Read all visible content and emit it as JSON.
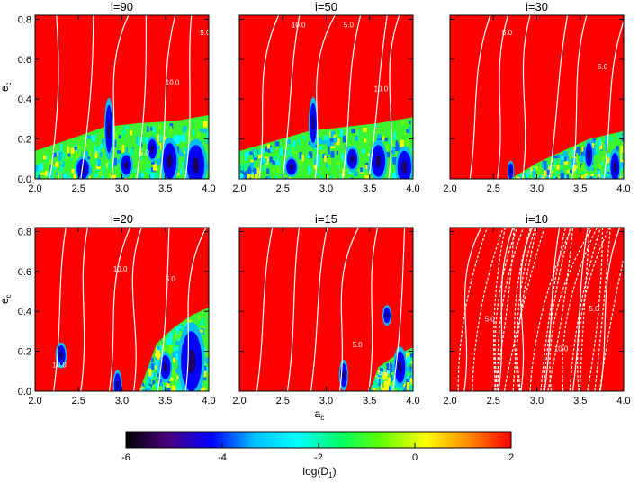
{
  "chart_data": [
    {
      "type": "heatmap",
      "title": "i=90",
      "xlim": [
        2.0,
        4.0
      ],
      "ylim": [
        0.0,
        0.82
      ],
      "xticks": [
        "2.0",
        "2.5",
        "3.0",
        "3.5",
        "4.0"
      ],
      "yticks": [
        "0.0",
        "0.2",
        "0.4",
        "0.6",
        "0.8"
      ],
      "ylabel_main": "e",
      "ylabel_sub": "c",
      "background_value": 2,
      "chaotic_region": [
        [
          2.0,
          0.14
        ],
        [
          2.4,
          0.2
        ],
        [
          2.8,
          0.26
        ],
        [
          3.2,
          0.28
        ],
        [
          3.6,
          0.29
        ],
        [
          4.0,
          0.32
        ]
      ],
      "stable_islands": [
        [
          2.55,
          0.05,
          0.07,
          0.05
        ],
        [
          2.85,
          0.25,
          0.04,
          0.12
        ],
        [
          3.05,
          0.07,
          0.06,
          0.05
        ],
        [
          3.55,
          0.09,
          0.08,
          0.09
        ],
        [
          3.85,
          0.07,
          0.1,
          0.1
        ],
        [
          3.35,
          0.15,
          0.05,
          0.05
        ]
      ],
      "contour_labels": [
        {
          "x": 3.9,
          "y": 0.72,
          "text": "5.0"
        },
        {
          "x": 3.5,
          "y": 0.47,
          "text": "10.0"
        },
        {
          "x": 3.2,
          "y": 0.12,
          "text": "5.0"
        }
      ]
    },
    {
      "type": "heatmap",
      "title": "i=50",
      "xlim": [
        2.0,
        4.0
      ],
      "ylim": [
        0.0,
        0.82
      ],
      "xticks": [
        "2.0",
        "2.5",
        "3.0",
        "3.5",
        "4.0"
      ],
      "yticks": [],
      "background_value": 2,
      "chaotic_region": [
        [
          2.0,
          0.14
        ],
        [
          2.4,
          0.19
        ],
        [
          2.8,
          0.24
        ],
        [
          3.2,
          0.26
        ],
        [
          3.6,
          0.28
        ],
        [
          4.0,
          0.31
        ]
      ],
      "stable_islands": [
        [
          2.6,
          0.06,
          0.06,
          0.04
        ],
        [
          2.85,
          0.28,
          0.04,
          0.1
        ],
        [
          3.3,
          0.1,
          0.06,
          0.05
        ],
        [
          3.6,
          0.09,
          0.08,
          0.08
        ],
        [
          3.9,
          0.06,
          0.08,
          0.08
        ]
      ],
      "contour_labels": [
        {
          "x": 2.6,
          "y": 0.76,
          "text": "10.0"
        },
        {
          "x": 3.2,
          "y": 0.76,
          "text": "5.0"
        },
        {
          "x": 3.55,
          "y": 0.44,
          "text": "10.0"
        }
      ]
    },
    {
      "type": "heatmap",
      "title": "i=30",
      "xlim": [
        2.0,
        4.0
      ],
      "ylim": [
        0.0,
        0.82
      ],
      "xticks": [
        "2.0",
        "2.5",
        "3.0",
        "3.5",
        "4.0"
      ],
      "yticks": [],
      "background_value": 2,
      "chaotic_region": [
        [
          2.7,
          0.0
        ],
        [
          3.0,
          0.08
        ],
        [
          3.3,
          0.14
        ],
        [
          3.6,
          0.2
        ],
        [
          4.0,
          0.24
        ]
      ],
      "stable_islands": [
        [
          2.7,
          0.04,
          0.03,
          0.04
        ],
        [
          3.6,
          0.12,
          0.04,
          0.06
        ],
        [
          3.9,
          0.06,
          0.05,
          0.07
        ]
      ],
      "contour_labels": [
        {
          "x": 3.7,
          "y": 0.55,
          "text": "5.0"
        },
        {
          "x": 2.6,
          "y": 0.72,
          "text": "5.0"
        }
      ]
    },
    {
      "type": "heatmap",
      "title": "i=20",
      "xlim": [
        2.0,
        4.0
      ],
      "ylim": [
        0.0,
        0.82
      ],
      "xticks": [
        "2.0",
        "2.5",
        "3.0",
        "3.5",
        "4.0"
      ],
      "yticks": [
        "0.0",
        "0.2",
        "0.4",
        "0.6",
        "0.8"
      ],
      "ylabel_main": "e",
      "ylabel_sub": "c",
      "background_value": 2,
      "chaotic_region": [
        [
          3.2,
          0.0
        ],
        [
          3.4,
          0.24
        ],
        [
          3.6,
          0.32
        ],
        [
          3.8,
          0.38
        ],
        [
          4.0,
          0.42
        ]
      ],
      "stable_islands": [
        [
          2.3,
          0.18,
          0.05,
          0.05
        ],
        [
          2.95,
          0.03,
          0.04,
          0.06
        ],
        [
          3.8,
          0.15,
          0.12,
          0.15
        ],
        [
          3.5,
          0.12,
          0.06,
          0.06
        ]
      ],
      "contour_labels": [
        {
          "x": 2.9,
          "y": 0.6,
          "text": "10.0"
        },
        {
          "x": 3.5,
          "y": 0.55,
          "text": "5.0"
        },
        {
          "x": 2.2,
          "y": 0.12,
          "text": "10.0"
        }
      ]
    },
    {
      "type": "heatmap",
      "title": "i=15",
      "xlim": [
        2.0,
        4.0
      ],
      "ylim": [
        0.0,
        0.82
      ],
      "xticks": [
        "2.0",
        "2.5",
        "3.0",
        "3.5",
        "4.0"
      ],
      "yticks": [],
      "background_value": 2,
      "chaotic_region": [
        [
          3.5,
          0.0
        ],
        [
          3.6,
          0.12
        ],
        [
          3.8,
          0.18
        ],
        [
          4.0,
          0.22
        ]
      ],
      "stable_islands": [
        [
          3.2,
          0.08,
          0.04,
          0.06
        ],
        [
          3.7,
          0.38,
          0.04,
          0.04
        ],
        [
          3.85,
          0.12,
          0.06,
          0.08
        ]
      ],
      "contour_labels": [
        {
          "x": 3.3,
          "y": 0.22,
          "text": "5.0"
        },
        {
          "x": 3.6,
          "y": 0.08,
          "text": "5.0"
        }
      ]
    },
    {
      "type": "heatmap",
      "title": "i=10",
      "xlim": [
        2.0,
        4.0
      ],
      "ylim": [
        0.0,
        0.82
      ],
      "xticks": [
        "2.0",
        "2.5",
        "3.0",
        "3.5",
        "4.0"
      ],
      "yticks": [],
      "background_value": 2,
      "chaotic_region": [],
      "stable_islands": [],
      "contour_labels": [
        {
          "x": 3.6,
          "y": 0.4,
          "text": "5.0"
        },
        {
          "x": 3.2,
          "y": 0.2,
          "text": "10.0"
        },
        {
          "x": 2.4,
          "y": 0.35,
          "text": "5.0"
        }
      ]
    }
  ],
  "xlabel_main": "a",
  "xlabel_sub": "c",
  "colorbar": {
    "min": -6,
    "max": 2,
    "ticks": [
      "-6",
      "-4",
      "-2",
      "0",
      "2"
    ],
    "label_main": "log(D",
    "label_sub": "1",
    "label_end": ")",
    "colors": [
      "#000000",
      "#4b0082",
      "#0000ff",
      "#00bfff",
      "#00ffff",
      "#00ff66",
      "#66ff00",
      "#ffff00",
      "#ff8c00",
      "#ff0000"
    ]
  }
}
